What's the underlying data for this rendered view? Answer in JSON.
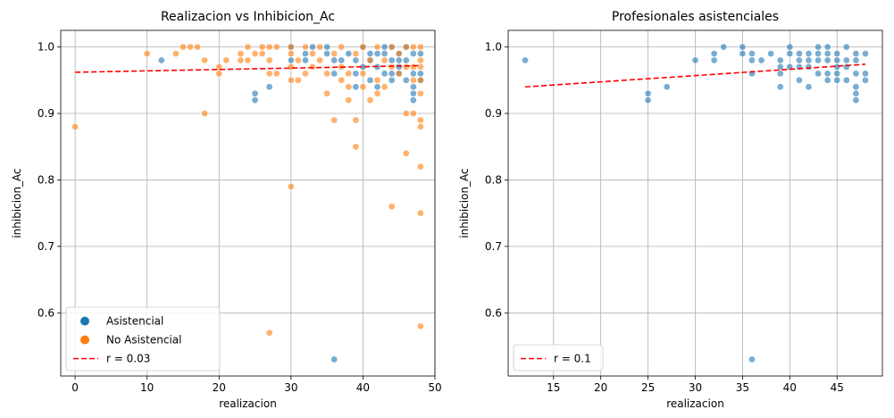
{
  "chart_data": [
    {
      "type": "scatter",
      "title": "Realizacion vs Inhibicion_Ac",
      "xlabel": "realizacion",
      "ylabel": "inhibicion_Ac",
      "xlim": [
        -2,
        50
      ],
      "ylim": [
        0.505,
        1.025
      ],
      "xticks": [
        0,
        10,
        20,
        30,
        40,
        50
      ],
      "yticks": [
        0.6,
        0.7,
        0.8,
        0.9,
        1.0
      ],
      "ytick_labels": [
        "0.6",
        "0.7",
        "0.8",
        "0.9",
        "1.0"
      ],
      "grid": true,
      "legend_position": "lower-left",
      "series": [
        {
          "name": "Asistencial",
          "color": "#1f77b4",
          "points": [
            [
              12,
              0.98
            ],
            [
              25,
              0.93
            ],
            [
              25,
              0.92
            ],
            [
              27,
              0.94
            ],
            [
              30,
              1.0
            ],
            [
              30,
              0.98
            ],
            [
              32,
              0.98
            ],
            [
              32,
              0.99
            ],
            [
              33,
              1.0
            ],
            [
              35,
              1.0
            ],
            [
              35,
              0.99
            ],
            [
              36,
              0.98
            ],
            [
              36,
              0.96
            ],
            [
              36,
              0.53
            ],
            [
              37,
              0.98
            ],
            [
              38,
              0.99
            ],
            [
              39,
              0.98
            ],
            [
              39,
              0.96
            ],
            [
              39,
              0.94
            ],
            [
              40,
              1.0
            ],
            [
              40,
              0.97
            ],
            [
              41,
              0.99
            ],
            [
              41,
              0.95
            ],
            [
              41,
              0.98
            ],
            [
              42,
              0.99
            ],
            [
              42,
              0.97
            ],
            [
              42,
              0.94
            ],
            [
              43,
              1.0
            ],
            [
              43,
              0.99
            ],
            [
              43,
              0.96
            ],
            [
              44,
              1.0
            ],
            [
              44,
              0.98
            ],
            [
              44,
              0.96
            ],
            [
              44,
              0.95
            ],
            [
              45,
              0.99
            ],
            [
              45,
              0.98
            ],
            [
              45,
              0.97
            ],
            [
              45,
              0.96
            ],
            [
              46,
              1.0
            ],
            [
              46,
              0.98
            ],
            [
              46,
              0.95
            ],
            [
              47,
              0.99
            ],
            [
              47,
              0.96
            ],
            [
              47,
              0.94
            ],
            [
              47,
              0.93
            ],
            [
              47,
              0.92
            ],
            [
              48,
              0.99
            ],
            [
              48,
              0.96
            ],
            [
              48,
              0.95
            ]
          ]
        },
        {
          "name": "No Asistencial",
          "color": "#ff7f0e",
          "points": [
            [
              0,
              0.88
            ],
            [
              10,
              0.99
            ],
            [
              14,
              0.99
            ],
            [
              15,
              1.0
            ],
            [
              16,
              1.0
            ],
            [
              17,
              1.0
            ],
            [
              18,
              0.98
            ],
            [
              18,
              0.9
            ],
            [
              20,
              0.97
            ],
            [
              20,
              0.96
            ],
            [
              21,
              0.98
            ],
            [
              23,
              0.99
            ],
            [
              23,
              0.98
            ],
            [
              24,
              1.0
            ],
            [
              24,
              0.98
            ],
            [
              25,
              0.99
            ],
            [
              26,
              1.0
            ],
            [
              26,
              0.99
            ],
            [
              27,
              1.0
            ],
            [
              27,
              0.98
            ],
            [
              27,
              0.96
            ],
            [
              27,
              0.57
            ],
            [
              28,
              1.0
            ],
            [
              28,
              0.96
            ],
            [
              30,
              1.0
            ],
            [
              30,
              0.99
            ],
            [
              30,
              0.97
            ],
            [
              30,
              0.95
            ],
            [
              30,
              0.79
            ],
            [
              31,
              0.98
            ],
            [
              31,
              0.95
            ],
            [
              32,
              1.0
            ],
            [
              32,
              0.96
            ],
            [
              33,
              0.99
            ],
            [
              33,
              0.97
            ],
            [
              34,
              1.0
            ],
            [
              34,
              0.98
            ],
            [
              35,
              0.96
            ],
            [
              35,
              0.93
            ],
            [
              36,
              0.99
            ],
            [
              36,
              0.89
            ],
            [
              37,
              1.0
            ],
            [
              37,
              0.97
            ],
            [
              37,
              0.95
            ],
            [
              38,
              0.96
            ],
            [
              38,
              0.94
            ],
            [
              38,
              0.92
            ],
            [
              39,
              0.99
            ],
            [
              39,
              0.89
            ],
            [
              39,
              0.85
            ],
            [
              40,
              1.0
            ],
            [
              40,
              0.96
            ],
            [
              40,
              0.94
            ],
            [
              41,
              0.98
            ],
            [
              41,
              0.92
            ],
            [
              42,
              1.0
            ],
            [
              42,
              0.95
            ],
            [
              42,
              0.93
            ],
            [
              43,
              0.98
            ],
            [
              43,
              0.94
            ],
            [
              44,
              1.0
            ],
            [
              44,
              0.97
            ],
            [
              44,
              0.76
            ],
            [
              45,
              0.99
            ],
            [
              45,
              0.96
            ],
            [
              46,
              1.0
            ],
            [
              46,
              0.97
            ],
            [
              46,
              0.9
            ],
            [
              46,
              0.84
            ],
            [
              47,
              1.0
            ],
            [
              47,
              0.97
            ],
            [
              47,
              0.95
            ],
            [
              47,
              0.9
            ],
            [
              48,
              1.0
            ],
            [
              48,
              0.98
            ],
            [
              48,
              0.97
            ],
            [
              48,
              0.95
            ],
            [
              48,
              0.93
            ],
            [
              48,
              0.89
            ],
            [
              48,
              0.88
            ],
            [
              48,
              0.82
            ],
            [
              48,
              0.75
            ],
            [
              48,
              0.58
            ]
          ]
        }
      ],
      "trendline": {
        "label": "r = 0.03",
        "color": "#ff0000",
        "x": [
          0,
          48
        ],
        "y": [
          0.962,
          0.972
        ]
      }
    },
    {
      "type": "scatter",
      "title": "Profesionales asistenciales",
      "xlabel": "realizacion",
      "ylabel": "inhibicion_Ac",
      "xlim": [
        10.2,
        49.8
      ],
      "ylim": [
        0.505,
        1.025
      ],
      "xticks": [
        15,
        20,
        25,
        30,
        35,
        40,
        45
      ],
      "yticks": [
        0.6,
        0.7,
        0.8,
        0.9,
        1.0
      ],
      "ytick_labels": [
        "0.6",
        "0.7",
        "0.8",
        "0.9",
        "1.0"
      ],
      "grid": true,
      "legend_position": "lower-left",
      "series": [
        {
          "name": "Asistencial",
          "color": "#1f77b4",
          "points": [
            [
              12,
              0.98
            ],
            [
              25,
              0.93
            ],
            [
              25,
              0.92
            ],
            [
              27,
              0.94
            ],
            [
              30,
              0.98
            ],
            [
              32,
              0.99
            ],
            [
              32,
              0.98
            ],
            [
              33,
              1.0
            ],
            [
              35,
              1.0
            ],
            [
              35,
              0.99
            ],
            [
              36,
              0.99
            ],
            [
              36,
              0.98
            ],
            [
              36,
              0.96
            ],
            [
              36,
              0.53
            ],
            [
              37,
              0.98
            ],
            [
              38,
              0.99
            ],
            [
              39,
              0.98
            ],
            [
              39,
              0.97
            ],
            [
              39,
              0.96
            ],
            [
              39,
              0.94
            ],
            [
              40,
              1.0
            ],
            [
              40,
              0.99
            ],
            [
              40,
              0.97
            ],
            [
              41,
              0.99
            ],
            [
              41,
              0.98
            ],
            [
              41,
              0.97
            ],
            [
              41,
              0.95
            ],
            [
              42,
              0.99
            ],
            [
              42,
              0.98
            ],
            [
              42,
              0.97
            ],
            [
              42,
              0.94
            ],
            [
              43,
              1.0
            ],
            [
              43,
              0.99
            ],
            [
              43,
              0.98
            ],
            [
              43,
              0.96
            ],
            [
              44,
              1.0
            ],
            [
              44,
              0.99
            ],
            [
              44,
              0.98
            ],
            [
              44,
              0.96
            ],
            [
              44,
              0.95
            ],
            [
              45,
              0.99
            ],
            [
              45,
              0.98
            ],
            [
              45,
              0.97
            ],
            [
              45,
              0.96
            ],
            [
              45,
              0.95
            ],
            [
              46,
              1.0
            ],
            [
              46,
              0.98
            ],
            [
              46,
              0.97
            ],
            [
              46,
              0.95
            ],
            [
              47,
              0.99
            ],
            [
              47,
              0.98
            ],
            [
              47,
              0.96
            ],
            [
              47,
              0.94
            ],
            [
              47,
              0.93
            ],
            [
              47,
              0.92
            ],
            [
              48,
              0.99
            ],
            [
              48,
              0.96
            ],
            [
              48,
              0.95
            ]
          ]
        }
      ],
      "trendline": {
        "label": "r = 0.1",
        "color": "#ff0000",
        "x": [
          12,
          48
        ],
        "y": [
          0.94,
          0.974
        ]
      }
    }
  ]
}
